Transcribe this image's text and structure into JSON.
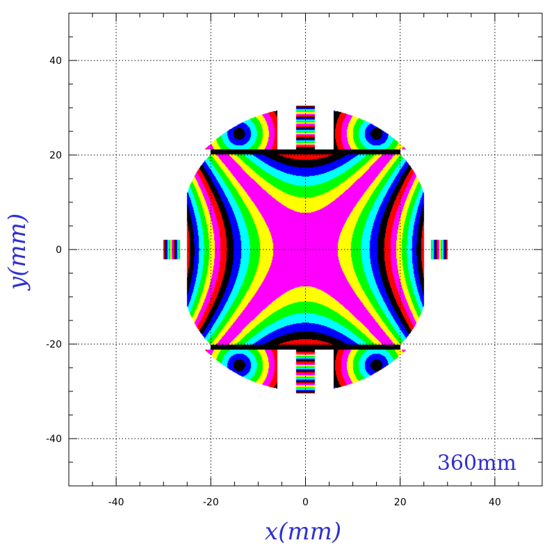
{
  "chart_data": {
    "type": "heatmap",
    "title": "",
    "xlabel": "x(mm)",
    "ylabel": "y(mm)",
    "annotation": "360mm",
    "xlim": [
      -50,
      50
    ],
    "ylim": [
      -50,
      50
    ],
    "x_ticks": [
      -40,
      -20,
      0,
      20,
      40
    ],
    "y_ticks": [
      -40,
      -20,
      0,
      20,
      40
    ],
    "x_tick_labels": [
      "-40",
      "-20",
      "0",
      "20",
      "40"
    ],
    "y_tick_labels": [
      "-40",
      "-20",
      "0",
      "20",
      "40"
    ],
    "grid": true,
    "grid_style": "dotted",
    "aperture_radius_mm": 30,
    "contour_palette": [
      "#ff00ff",
      "#ffff00",
      "#00ff00",
      "#00ffff",
      "#0000ff",
      "#000000",
      "#ff0000"
    ],
    "colors": {
      "axis_title": "#3030d0",
      "annotation": "#3030d0",
      "frame": "#000000",
      "grid": "#000000"
    }
  }
}
